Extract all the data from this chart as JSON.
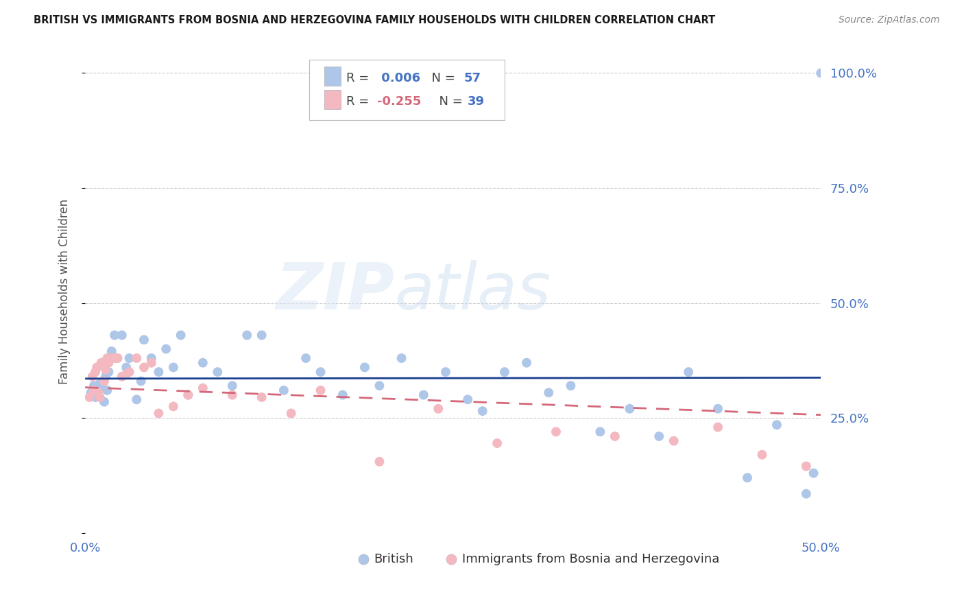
{
  "title": "BRITISH VS IMMIGRANTS FROM BOSNIA AND HERZEGOVINA FAMILY HOUSEHOLDS WITH CHILDREN CORRELATION CHART",
  "source": "Source: ZipAtlas.com",
  "ylabel": "Family Households with Children",
  "xlim": [
    0.0,
    0.5
  ],
  "ylim": [
    0.0,
    1.05
  ],
  "yticks": [
    0.0,
    0.25,
    0.5,
    0.75,
    1.0
  ],
  "ytick_labels": [
    "",
    "25.0%",
    "50.0%",
    "75.0%",
    "100.0%"
  ],
  "xticks": [
    0.0,
    0.1,
    0.2,
    0.3,
    0.4,
    0.5
  ],
  "xtick_labels": [
    "0.0%",
    "",
    "",
    "",
    "",
    "50.0%"
  ],
  "british_color": "#aec6e8",
  "bosnia_color": "#f4b8c1",
  "british_line_color": "#1a3f8f",
  "bosnia_line_color": "#d4687a",
  "R_british": 0.006,
  "N_british": 57,
  "R_bosnia": -0.255,
  "N_bosnia": 39,
  "watermark_zip": "ZIP",
  "watermark_atlas": "atlas",
  "british_scatter_x": [
    0.004,
    0.006,
    0.007,
    0.008,
    0.009,
    0.01,
    0.011,
    0.012,
    0.013,
    0.014,
    0.015,
    0.016,
    0.018,
    0.02,
    0.022,
    0.025,
    0.028,
    0.03,
    0.035,
    0.038,
    0.04,
    0.045,
    0.05,
    0.055,
    0.06,
    0.065,
    0.07,
    0.08,
    0.09,
    0.1,
    0.11,
    0.12,
    0.135,
    0.15,
    0.16,
    0.175,
    0.19,
    0.2,
    0.215,
    0.23,
    0.245,
    0.26,
    0.27,
    0.285,
    0.3,
    0.315,
    0.33,
    0.35,
    0.37,
    0.39,
    0.41,
    0.43,
    0.45,
    0.47,
    0.49,
    0.495,
    0.5
  ],
  "british_scatter_y": [
    0.305,
    0.32,
    0.295,
    0.31,
    0.3,
    0.325,
    0.315,
    0.33,
    0.285,
    0.34,
    0.31,
    0.35,
    0.395,
    0.43,
    0.38,
    0.43,
    0.36,
    0.38,
    0.29,
    0.33,
    0.42,
    0.38,
    0.35,
    0.4,
    0.36,
    0.43,
    0.3,
    0.37,
    0.35,
    0.32,
    0.43,
    0.43,
    0.31,
    0.38,
    0.35,
    0.3,
    0.36,
    0.32,
    0.38,
    0.3,
    0.35,
    0.29,
    0.265,
    0.35,
    0.37,
    0.305,
    0.32,
    0.22,
    0.27,
    0.21,
    0.35,
    0.27,
    0.12,
    0.235,
    0.085,
    0.13,
    1.0
  ],
  "bosnia_scatter_x": [
    0.003,
    0.005,
    0.006,
    0.007,
    0.008,
    0.009,
    0.01,
    0.011,
    0.012,
    0.013,
    0.014,
    0.015,
    0.016,
    0.018,
    0.02,
    0.022,
    0.025,
    0.028,
    0.03,
    0.035,
    0.04,
    0.045,
    0.05,
    0.06,
    0.07,
    0.08,
    0.1,
    0.12,
    0.14,
    0.16,
    0.2,
    0.24,
    0.28,
    0.32,
    0.36,
    0.4,
    0.43,
    0.46,
    0.49
  ],
  "bosnia_scatter_y": [
    0.295,
    0.34,
    0.31,
    0.35,
    0.36,
    0.305,
    0.295,
    0.37,
    0.365,
    0.33,
    0.355,
    0.38,
    0.37,
    0.38,
    0.38,
    0.38,
    0.34,
    0.345,
    0.35,
    0.38,
    0.36,
    0.37,
    0.26,
    0.275,
    0.3,
    0.315,
    0.3,
    0.295,
    0.26,
    0.31,
    0.155,
    0.27,
    0.195,
    0.22,
    0.21,
    0.2,
    0.23,
    0.17,
    0.145
  ]
}
